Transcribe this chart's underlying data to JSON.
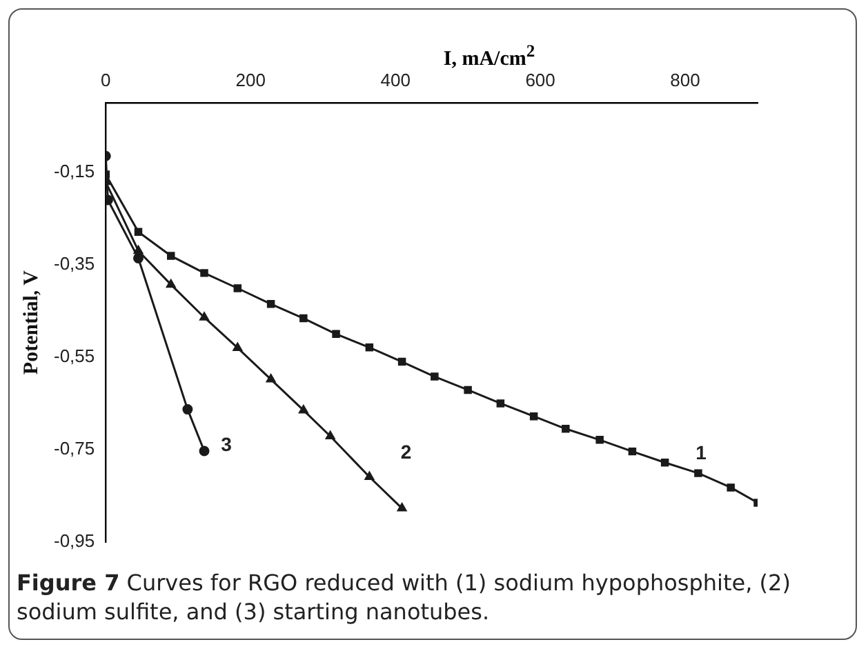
{
  "chart_data": {
    "type": "line",
    "xlabel": "I, mA/cm$^{2}$",
    "ylabel": "Potential, V",
    "xlim": [
      0,
      900
    ],
    "xticks": [
      0,
      200,
      400,
      600,
      800
    ],
    "ylim": [
      -0.95,
      0
    ],
    "yticks": [
      {
        "value": -0.15,
        "label": "-0,15"
      },
      {
        "value": -0.35,
        "label": "-0,35"
      },
      {
        "value": -0.55,
        "label": "-0,55"
      },
      {
        "value": -0.75,
        "label": "-0,75"
      },
      {
        "value": -0.95,
        "label": "-0,95"
      }
    ],
    "grid": false,
    "legend": false,
    "line_style": "solid",
    "series": [
      {
        "name": "1",
        "color": "#1a1a1a",
        "marker": "square",
        "x": [
          0,
          45,
          90,
          136,
          182,
          228,
          273,
          318,
          364,
          409,
          454,
          500,
          545,
          591,
          635,
          682,
          727,
          772,
          818,
          863,
          900
        ],
        "values": [
          -0.155,
          -0.279,
          -0.331,
          -0.368,
          -0.401,
          -0.435,
          -0.466,
          -0.5,
          -0.529,
          -0.56,
          -0.592,
          -0.621,
          -0.65,
          -0.678,
          -0.705,
          -0.729,
          -0.754,
          -0.778,
          -0.801,
          -0.832,
          -0.865
        ]
      },
      {
        "name": "2",
        "color": "#1a1a1a",
        "marker": "triangle",
        "x": [
          0,
          45,
          90,
          136,
          182,
          228,
          273,
          310,
          364,
          409
        ],
        "values": [
          -0.171,
          -0.32,
          -0.393,
          -0.464,
          -0.53,
          -0.598,
          -0.665,
          -0.721,
          -0.809,
          -0.877
        ]
      },
      {
        "name": "3",
        "color": "#1a1a1a",
        "marker": "circle",
        "x": [
          0,
          3,
          45,
          113,
          136
        ],
        "values": [
          -0.115,
          -0.21,
          -0.336,
          -0.663,
          -0.753
        ]
      }
    ],
    "annotations": [
      "Figure 7 Curves for RGO reduced with (1) sodium hypophosphite, (2) sodium sulfite, and (3) starting nanotubes."
    ]
  }
}
